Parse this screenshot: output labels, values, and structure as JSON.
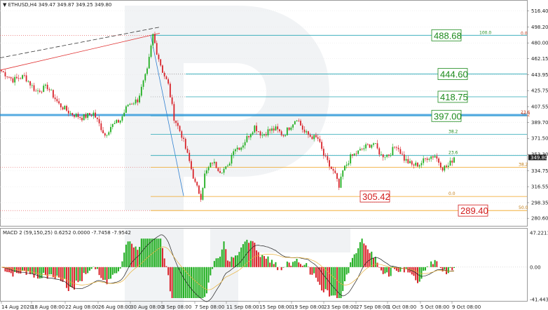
{
  "header": {
    "symbol_text": "ETHUSD,H4",
    "ohlc_text": "349.47 349.87 349.25 349.80",
    "macd_text": "MACD 2 (59,150,25) 0.6252 0.0000 -7.7458 -7.9542"
  },
  "chart_data": {
    "type": "candlestick",
    "symbol": "ETHUSD",
    "timeframe": "H4",
    "price_axis": {
      "min": 272,
      "max": 528,
      "ticks": [
        "516.40",
        "498.20",
        "480.00",
        "462.15",
        "443.95",
        "425.75",
        "407.55",
        "389.70",
        "371.50",
        "353.30",
        "334.75",
        "316.55",
        "298.35",
        "280.60"
      ],
      "current_price": "349.80"
    },
    "time_axis": {
      "labels": [
        "14 Aug 2020",
        "18 Aug 08:00",
        "22 Aug 08:00",
        "26 Aug 08:00",
        "30 Aug 08:00",
        "3 Sep 08:00",
        "7 Sep 08:00",
        "11 Sep 08:00",
        "15 Sep 08:00",
        "19 Sep 08:00",
        "23 Sep 08:00",
        "27 Sep 08:00",
        "1 Oct 08:00",
        "5 Oct 08:00",
        "9 Oct 08:00"
      ]
    },
    "price_path": [
      [
        0,
        448
      ],
      [
        6,
        438
      ],
      [
        12,
        442
      ],
      [
        18,
        425
      ],
      [
        24,
        430
      ],
      [
        30,
        410
      ],
      [
        36,
        400
      ],
      [
        42,
        395
      ],
      [
        48,
        400
      ],
      [
        54,
        375
      ],
      [
        57,
        385
      ],
      [
        62,
        392
      ],
      [
        66,
        410
      ],
      [
        71,
        415
      ],
      [
        76,
        448
      ],
      [
        79,
        489
      ],
      [
        81,
        470
      ],
      [
        84,
        448
      ],
      [
        87,
        432
      ],
      [
        90,
        395
      ],
      [
        94,
        375
      ],
      [
        98,
        345
      ],
      [
        101,
        320
      ],
      [
        104,
        305
      ],
      [
        106,
        330
      ],
      [
        110,
        345
      ],
      [
        114,
        335
      ],
      [
        118,
        338
      ],
      [
        121,
        360
      ],
      [
        125,
        362
      ],
      [
        128,
        372
      ],
      [
        132,
        385
      ],
      [
        136,
        375
      ],
      [
        139,
        380
      ],
      [
        143,
        382
      ],
      [
        147,
        375
      ],
      [
        150,
        384
      ],
      [
        154,
        395
      ],
      [
        158,
        378
      ],
      [
        161,
        374
      ],
      [
        165,
        371
      ],
      [
        168,
        352
      ],
      [
        171,
        340
      ],
      [
        174,
        330
      ],
      [
        176,
        315
      ],
      [
        178,
        334
      ],
      [
        182,
        350
      ],
      [
        186,
        356
      ],
      [
        190,
        362
      ],
      [
        194,
        366
      ],
      [
        198,
        352
      ],
      [
        202,
        353
      ],
      [
        206,
        364
      ],
      [
        210,
        348
      ],
      [
        214,
        341
      ],
      [
        218,
        342
      ],
      [
        222,
        350
      ],
      [
        226,
        352
      ],
      [
        230,
        338
      ],
      [
        233,
        340
      ],
      [
        236,
        350
      ]
    ],
    "fib_retracement_levels": [
      {
        "label": "100.0",
        "value": 488.68
      },
      {
        "label": "23.6",
        "value": 397.0
      },
      {
        "label": "38.2",
        "value": 376.0
      },
      {
        "label": "23.6",
        "value": 352.0
      },
      {
        "label": "38.2",
        "value": 338.5
      },
      {
        "label": "0.0",
        "value": 305.42
      },
      {
        "label": "50.0",
        "value": 289.4
      }
    ],
    "fib_right_labels": [
      {
        "label": "0.0",
        "value": 488.68
      },
      {
        "label": "23.6",
        "value": 399.0
      },
      {
        "label": "38.2",
        "value": 396.0
      }
    ],
    "target_levels": [
      {
        "text": "488.68",
        "value": 488.68,
        "color": "#1b8a1b"
      },
      {
        "text": "444.60",
        "value": 444.6,
        "color": "#1b8a1b"
      },
      {
        "text": "418.75",
        "value": 418.75,
        "color": "#1b8a1b"
      },
      {
        "text": "397.00",
        "value": 397.0,
        "color": "#1b8a1b"
      },
      {
        "text": "305.42",
        "value": 305.42,
        "color": "#d21b1b"
      },
      {
        "text": "289.40",
        "value": 289.4,
        "color": "#d21b1b"
      }
    ],
    "indicator": {
      "name": "MACD",
      "ticks": [
        "47.2211",
        "0.00",
        "-41.4436"
      ],
      "range": [
        -41.4436,
        47.2211
      ]
    },
    "colors": {
      "bull": "#1fae1f",
      "bear": "#d8232a",
      "grid": "#e6e6e6",
      "fib_teal": "#26a6b5",
      "fib_orange": "#f0a21e",
      "trend_red": "#e03030"
    }
  }
}
